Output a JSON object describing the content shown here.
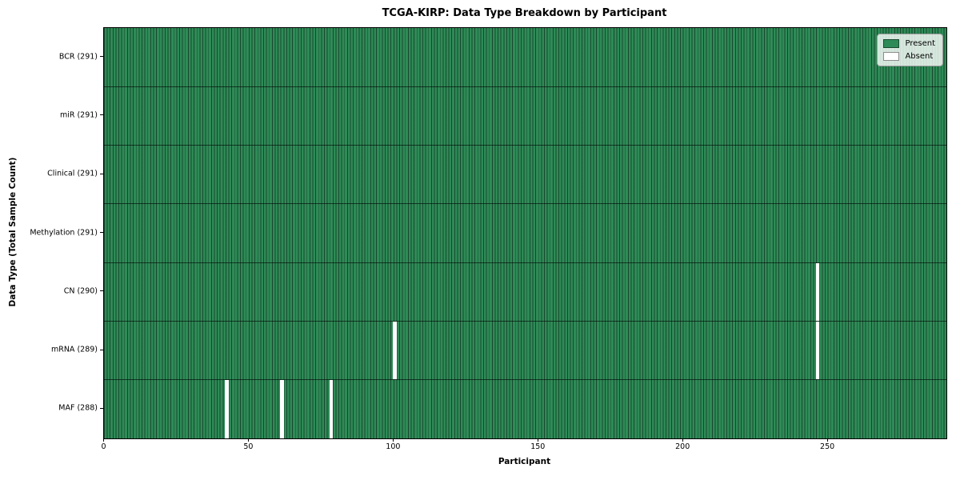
{
  "figure": {
    "title": "TCGA-KIRP: Data Type Breakdown by Participant",
    "x_label": "Participant",
    "y_label": "Data Type (Total Sample Count)"
  },
  "legend": {
    "items": [
      {
        "label": "Present",
        "color": "#2e8b57"
      },
      {
        "label": "Absent",
        "color": "#ffffff"
      }
    ]
  },
  "chart_data": {
    "type": "heatmap",
    "title": "TCGA-KIRP: Data Type Breakdown by Participant",
    "xlabel": "Participant",
    "ylabel": "Data Type (Total Sample Count)",
    "n_participants": 291,
    "xlim": [
      0,
      291
    ],
    "x_ticks": [
      0,
      50,
      100,
      150,
      200,
      250
    ],
    "grid": "row-separators",
    "legend_position": "upper-right",
    "rows": [
      {
        "label": "BCR (291)",
        "data_type": "BCR",
        "present_count": 291,
        "absent_participants": []
      },
      {
        "label": "miR (291)",
        "data_type": "miR",
        "present_count": 291,
        "absent_participants": []
      },
      {
        "label": "Clinical (291)",
        "data_type": "Clinical",
        "present_count": 291,
        "absent_participants": []
      },
      {
        "label": "Methylation (291)",
        "data_type": "Methylation",
        "present_count": 291,
        "absent_participants": []
      },
      {
        "label": "CN (290)",
        "data_type": "CN",
        "present_count": 290,
        "absent_participants": [
          246
        ]
      },
      {
        "label": "mRNA (289)",
        "data_type": "mRNA",
        "present_count": 289,
        "absent_participants": [
          100,
          246
        ]
      },
      {
        "label": "MAF (288)",
        "data_type": "MAF",
        "present_count": 288,
        "absent_participants": [
          42,
          61,
          78
        ]
      }
    ],
    "colors": {
      "present": "#2e8b57",
      "absent": "#ffffff",
      "bar_edge": "#17452b",
      "spine": "#000000"
    }
  }
}
